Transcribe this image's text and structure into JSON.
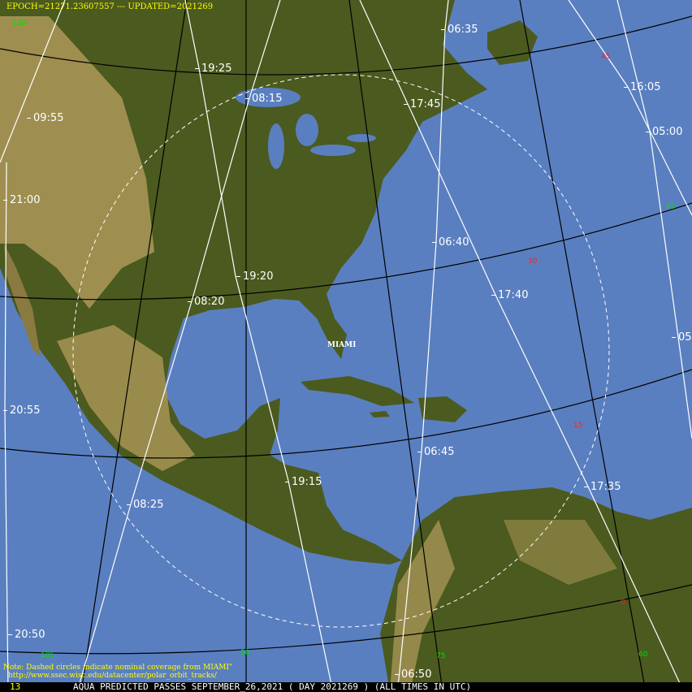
{
  "header": {
    "epoch_text": "EPOCH=21271.23607557 --- UPDATED=2021269"
  },
  "footer": {
    "frame_number": "13",
    "title": "AQUA PREDICTED PASSES SEPTEMBER_26,2021 ( DAY 2021269 ) (ALL TIMES IN UTC)"
  },
  "note": {
    "line1": "Note: Dashed circles indicate nominal coverage from MIAMI\"",
    "line2": "http://www.ssec.wisc.edu/datacenter/polar_orbit_tracks/"
  },
  "station": {
    "name": "MIAMI"
  },
  "colors": {
    "ocean": "#5a7fc0",
    "land": "#4b5a1f",
    "desert": "#b39c5c",
    "tracks": "#ffffff",
    "graticule": "#000000",
    "borders": "#000080"
  },
  "pass_times": [
    "06:35",
    "19:25",
    "08:15",
    "17:45",
    "16:05",
    "05:00",
    "09:55",
    "21:00",
    "06:40",
    "19:20",
    "17:40",
    "08:20",
    "05",
    "20:55",
    "06:45",
    "19:15",
    "17:35",
    "08:25",
    "20:50",
    "06:50"
  ],
  "graticule_labels": {
    "longitude": [
      "120",
      "105",
      "90",
      "75",
      "60",
      "45"
    ],
    "latitude": [
      "45",
      "30",
      "15",
      "0"
    ]
  }
}
